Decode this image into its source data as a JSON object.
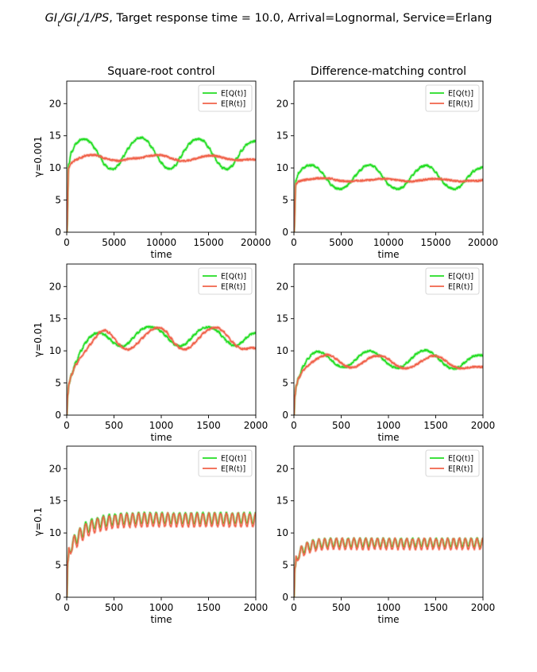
{
  "figure": {
    "title_parts": [
      {
        "t": "GI",
        "it": true
      },
      {
        "t": "t",
        "sub": true,
        "it": true
      },
      {
        "t": "/",
        "it": true
      },
      {
        "t": "GI",
        "it": true
      },
      {
        "t": "t",
        "sub": true,
        "it": true
      },
      {
        "t": "/1/",
        "it": true
      },
      {
        "t": "PS",
        "it": true
      },
      {
        "t": ", Target response time = 10.0, Arrival=Lognormal, Service=Erlang",
        "it": false
      }
    ],
    "col_titles": [
      "Square-root control",
      "Difference-matching control"
    ],
    "row_labels": [
      "γ=0.001",
      "γ=0.01",
      "γ=0.1"
    ],
    "xlabel": "time",
    "legend": [
      "E[Q(t)]",
      "E[R(t)]"
    ],
    "colors": {
      "Q": "#22dd22",
      "R": "#f0624a",
      "axes": "#000000"
    }
  },
  "chart_data": [
    {
      "type": "line",
      "row": 0,
      "col": 0,
      "title": "Square-root control",
      "ylabel": "γ=0.001",
      "xlabel": "time",
      "xlim": [
        0,
        20000
      ],
      "ylim": [
        0,
        23.5
      ],
      "xticks": [
        0,
        5000,
        10000,
        15000,
        20000
      ],
      "yticks": [
        0,
        5,
        10,
        15,
        20
      ],
      "legend_position": "top-right",
      "series": [
        {
          "name": "E[Q(t)]",
          "x": [
            0,
            200,
            500,
            1000,
            1500,
            2000,
            2500,
            3000,
            3500,
            4000,
            4500,
            5000,
            5500,
            6000,
            6500,
            7000,
            7500,
            8000,
            8500,
            9000,
            9500,
            10000,
            10500,
            11000,
            11500,
            12000,
            12500,
            13000,
            13500,
            14000,
            14500,
            15000,
            15500,
            16000,
            16500,
            17000,
            17500,
            18000,
            18500,
            19000,
            19500,
            20000
          ],
          "y": [
            0,
            10.5,
            12.5,
            13.8,
            14.4,
            14.5,
            14.0,
            13.0,
            11.8,
            10.5,
            9.9,
            9.8,
            10.5,
            11.8,
            13.0,
            14.0,
            14.6,
            14.7,
            14.2,
            13.2,
            12.0,
            10.8,
            10.0,
            9.8,
            10.4,
            11.6,
            12.8,
            13.8,
            14.4,
            14.5,
            14.2,
            13.2,
            12.0,
            10.8,
            10.0,
            9.8,
            10.3,
            11.5,
            12.7,
            13.6,
            14.0,
            14.2
          ]
        },
        {
          "name": "E[R(t)]",
          "x": [
            0,
            200,
            500,
            1000,
            1500,
            2000,
            2500,
            3000,
            3500,
            4000,
            4500,
            5000,
            5500,
            6000,
            6500,
            7000,
            7500,
            8000,
            8500,
            9000,
            9500,
            10000,
            10500,
            11000,
            11500,
            12000,
            12500,
            13000,
            13500,
            14000,
            14500,
            15000,
            15500,
            16000,
            16500,
            17000,
            17500,
            18000,
            18500,
            19000,
            19500,
            20000
          ],
          "y": [
            0,
            10.0,
            10.8,
            11.3,
            11.6,
            11.9,
            12.0,
            12.0,
            11.8,
            11.5,
            11.3,
            11.2,
            11.1,
            11.2,
            11.4,
            11.5,
            11.5,
            11.6,
            11.8,
            11.9,
            12.0,
            12.0,
            11.8,
            11.5,
            11.3,
            11.1,
            11.1,
            11.2,
            11.4,
            11.6,
            11.8,
            11.9,
            11.9,
            11.8,
            11.6,
            11.4,
            11.3,
            11.2,
            11.2,
            11.3,
            11.3,
            11.3
          ]
        }
      ]
    },
    {
      "type": "line",
      "row": 0,
      "col": 1,
      "title": "Difference-matching control",
      "ylabel": "",
      "xlabel": "time",
      "xlim": [
        0,
        20000
      ],
      "ylim": [
        0,
        23.5
      ],
      "xticks": [
        0,
        5000,
        10000,
        15000,
        20000
      ],
      "yticks": [
        0,
        5,
        10,
        15,
        20
      ],
      "legend_position": "top-right",
      "series": [
        {
          "name": "E[Q(t)]",
          "x": [
            0,
            200,
            500,
            1000,
            1500,
            2000,
            2500,
            3000,
            3500,
            4000,
            4500,
            5000,
            5500,
            6000,
            6500,
            7000,
            7500,
            8000,
            8500,
            9000,
            9500,
            10000,
            10500,
            11000,
            11500,
            12000,
            12500,
            13000,
            13500,
            14000,
            14500,
            15000,
            15500,
            16000,
            16500,
            17000,
            17500,
            18000,
            18500,
            19000,
            19500,
            20000
          ],
          "y": [
            0,
            8.0,
            9.2,
            10.0,
            10.4,
            10.4,
            10.0,
            9.2,
            8.2,
            7.3,
            6.8,
            6.7,
            7.1,
            7.8,
            8.8,
            9.6,
            10.3,
            10.5,
            10.2,
            9.4,
            8.4,
            7.4,
            6.9,
            6.7,
            7.0,
            7.8,
            8.8,
            9.6,
            10.2,
            10.4,
            10.1,
            9.3,
            8.3,
            7.4,
            6.9,
            6.7,
            7.0,
            7.8,
            8.7,
            9.5,
            9.9,
            10.1
          ]
        },
        {
          "name": "E[R(t)]",
          "x": [
            0,
            200,
            500,
            1000,
            1500,
            2000,
            2500,
            3000,
            3500,
            4000,
            4500,
            5000,
            5500,
            6000,
            6500,
            7000,
            7500,
            8000,
            8500,
            9000,
            9500,
            10000,
            10500,
            11000,
            11500,
            12000,
            12500,
            13000,
            13500,
            14000,
            14500,
            15000,
            15500,
            16000,
            16500,
            17000,
            17500,
            18000,
            18500,
            19000,
            19500,
            20000
          ],
          "y": [
            0,
            7.5,
            7.9,
            8.1,
            8.2,
            8.3,
            8.4,
            8.4,
            8.4,
            8.3,
            8.1,
            8.0,
            7.9,
            7.9,
            8.0,
            8.0,
            8.1,
            8.1,
            8.2,
            8.3,
            8.3,
            8.3,
            8.2,
            8.1,
            8.0,
            7.9,
            7.9,
            8.0,
            8.1,
            8.2,
            8.3,
            8.3,
            8.3,
            8.2,
            8.1,
            8.0,
            7.9,
            7.9,
            8.0,
            8.0,
            8.0,
            8.1
          ]
        }
      ]
    },
    {
      "type": "line",
      "row": 1,
      "col": 0,
      "title": "",
      "ylabel": "γ=0.01",
      "xlabel": "time",
      "xlim": [
        0,
        2000
      ],
      "ylim": [
        0,
        23.5
      ],
      "xticks": [
        0,
        500,
        1000,
        1500,
        2000
      ],
      "yticks": [
        0,
        5,
        10,
        15,
        20
      ],
      "legend_position": "top-right",
      "series": [
        {
          "name": "E[Q(t)]",
          "x": [
            0,
            10,
            25,
            50,
            100,
            150,
            200,
            250,
            300,
            350,
            400,
            450,
            500,
            550,
            600,
            650,
            700,
            750,
            800,
            850,
            900,
            950,
            1000,
            1050,
            1100,
            1150,
            1200,
            1250,
            1300,
            1350,
            1400,
            1450,
            1500,
            1550,
            1600,
            1650,
            1700,
            1750,
            1800,
            1850,
            1900,
            1950,
            2000
          ],
          "y": [
            0,
            3.2,
            5.0,
            6.3,
            8.3,
            10.0,
            11.3,
            12.2,
            12.7,
            12.8,
            12.5,
            11.9,
            11.2,
            10.8,
            10.7,
            11.2,
            12.0,
            12.8,
            13.4,
            13.7,
            13.7,
            13.5,
            13.0,
            12.3,
            11.5,
            10.9,
            10.7,
            11.0,
            11.7,
            12.5,
            13.2,
            13.6,
            13.7,
            13.5,
            13.0,
            12.2,
            11.4,
            10.9,
            10.8,
            11.3,
            12.0,
            12.6,
            12.8
          ]
        },
        {
          "name": "E[R(t)]",
          "x": [
            0,
            10,
            25,
            50,
            100,
            150,
            200,
            250,
            300,
            350,
            400,
            450,
            500,
            550,
            600,
            650,
            700,
            750,
            800,
            850,
            900,
            950,
            1000,
            1050,
            1100,
            1150,
            1200,
            1250,
            1300,
            1350,
            1400,
            1450,
            1500,
            1550,
            1600,
            1650,
            1700,
            1750,
            1800,
            1850,
            1900,
            1950,
            2000
          ],
          "y": [
            0,
            3.2,
            5.0,
            6.3,
            7.9,
            9.0,
            10.0,
            11.0,
            12.0,
            12.9,
            13.2,
            12.8,
            12.0,
            11.0,
            10.4,
            10.2,
            10.5,
            11.2,
            12.0,
            12.7,
            13.3,
            13.6,
            13.5,
            13.0,
            12.0,
            11.0,
            10.4,
            10.2,
            10.5,
            11.2,
            12.0,
            12.8,
            13.3,
            13.6,
            13.6,
            13.1,
            12.3,
            11.4,
            10.7,
            10.3,
            10.3,
            10.5,
            10.4
          ]
        }
      ]
    },
    {
      "type": "line",
      "row": 1,
      "col": 1,
      "title": "",
      "ylabel": "",
      "xlabel": "time",
      "xlim": [
        0,
        2000
      ],
      "ylim": [
        0,
        23.5
      ],
      "xticks": [
        0,
        500,
        1000,
        1500,
        2000
      ],
      "yticks": [
        0,
        5,
        10,
        15,
        20
      ],
      "legend_position": "top-right",
      "series": [
        {
          "name": "E[Q(t)]",
          "x": [
            0,
            10,
            25,
            50,
            100,
            150,
            200,
            250,
            300,
            350,
            400,
            450,
            500,
            550,
            600,
            650,
            700,
            750,
            800,
            850,
            900,
            950,
            1000,
            1050,
            1100,
            1150,
            1200,
            1250,
            1300,
            1350,
            1400,
            1450,
            1500,
            1550,
            1600,
            1650,
            1700,
            1750,
            1800,
            1850,
            1900,
            1950,
            2000
          ],
          "y": [
            0,
            3.0,
            4.6,
            5.8,
            7.6,
            8.8,
            9.6,
            9.9,
            9.7,
            9.2,
            8.5,
            7.8,
            7.5,
            7.5,
            7.9,
            8.6,
            9.3,
            9.8,
            10.0,
            9.8,
            9.3,
            8.6,
            7.9,
            7.5,
            7.3,
            7.6,
            8.2,
            8.9,
            9.6,
            10.0,
            10.1,
            9.8,
            9.2,
            8.5,
            7.8,
            7.3,
            7.2,
            7.5,
            8.1,
            8.7,
            9.2,
            9.3,
            9.3
          ]
        },
        {
          "name": "E[R(t)]",
          "x": [
            0,
            10,
            25,
            50,
            100,
            150,
            200,
            250,
            300,
            350,
            400,
            450,
            500,
            550,
            600,
            650,
            700,
            750,
            800,
            850,
            900,
            950,
            1000,
            1050,
            1100,
            1150,
            1200,
            1250,
            1300,
            1350,
            1400,
            1450,
            1500,
            1550,
            1600,
            1650,
            1700,
            1750,
            1800,
            1850,
            1900,
            1950,
            2000
          ],
          "y": [
            0,
            3.0,
            4.6,
            5.8,
            7.0,
            7.7,
            8.3,
            8.8,
            9.2,
            9.4,
            9.2,
            8.7,
            8.1,
            7.6,
            7.4,
            7.5,
            7.9,
            8.4,
            8.9,
            9.2,
            9.2,
            9.1,
            8.7,
            8.1,
            7.6,
            7.3,
            7.3,
            7.5,
            7.9,
            8.4,
            8.8,
            9.2,
            9.2,
            9.0,
            8.5,
            7.9,
            7.5,
            7.3,
            7.3,
            7.4,
            7.5,
            7.5,
            7.5
          ]
        }
      ]
    },
    {
      "type": "line",
      "row": 2,
      "col": 0,
      "title": "",
      "ylabel": "γ=0.1",
      "xlabel": "time",
      "xlim": [
        0,
        2000
      ],
      "ylim": [
        0,
        23.5
      ],
      "xticks": [
        0,
        500,
        1000,
        1500,
        2000
      ],
      "yticks": [
        0,
        5,
        10,
        15,
        20
      ],
      "legend_position": "top-right",
      "series": [
        {
          "name": "E[Q(t)]",
          "x": [
            0,
            10,
            25,
            50,
            100,
            150,
            200,
            300,
            400,
            500,
            600,
            800,
            1000,
            1200,
            1400,
            1600,
            1800,
            2000
          ],
          "y": [
            0,
            5.5,
            7.0,
            8.0,
            9.2,
            10.0,
            10.8,
            11.5,
            11.9,
            12.1,
            12.2,
            12.3,
            12.3,
            12.3,
            12.3,
            12.3,
            12.3,
            12.3
          ],
          "oscillation": {
            "period": 62,
            "amplitude": 0.8
          }
        },
        {
          "name": "E[R(t)]",
          "x": [
            0,
            10,
            25,
            50,
            100,
            150,
            200,
            300,
            400,
            500,
            600,
            800,
            1000,
            1200,
            1400,
            1600,
            1800,
            2000
          ],
          "y": [
            0,
            5.5,
            7.0,
            8.0,
            8.8,
            9.7,
            10.4,
            11.1,
            11.5,
            11.8,
            11.9,
            12.0,
            12.0,
            12.0,
            12.0,
            12.0,
            12.0,
            12.0
          ],
          "oscillation": {
            "period": 62,
            "amplitude": 1.0
          }
        }
      ]
    },
    {
      "type": "line",
      "row": 2,
      "col": 1,
      "title": "",
      "ylabel": "",
      "xlabel": "time",
      "xlim": [
        0,
        2000
      ],
      "ylim": [
        0,
        23.5
      ],
      "xticks": [
        0,
        500,
        1000,
        1500,
        2000
      ],
      "yticks": [
        0,
        5,
        10,
        15,
        20
      ],
      "legend_position": "top-right",
      "series": [
        {
          "name": "E[Q(t)]",
          "x": [
            0,
            10,
            25,
            50,
            100,
            150,
            200,
            300,
            400,
            500,
            600,
            800,
            1000,
            1200,
            1400,
            1600,
            1800,
            2000
          ],
          "y": [
            0,
            4.5,
            5.8,
            6.7,
            7.5,
            7.9,
            8.2,
            8.4,
            8.5,
            8.5,
            8.5,
            8.5,
            8.5,
            8.5,
            8.5,
            8.5,
            8.5,
            8.5
          ],
          "oscillation": {
            "period": 62,
            "amplitude": 0.6
          }
        },
        {
          "name": "E[R(t)]",
          "x": [
            0,
            10,
            25,
            50,
            100,
            150,
            200,
            300,
            400,
            500,
            600,
            800,
            1000,
            1200,
            1400,
            1600,
            1800,
            2000
          ],
          "y": [
            0,
            4.5,
            5.8,
            6.7,
            7.3,
            7.7,
            8.0,
            8.2,
            8.3,
            8.3,
            8.3,
            8.3,
            8.3,
            8.3,
            8.3,
            8.3,
            8.3,
            8.3
          ],
          "oscillation": {
            "period": 62,
            "amplitude": 0.8
          }
        }
      ]
    }
  ]
}
